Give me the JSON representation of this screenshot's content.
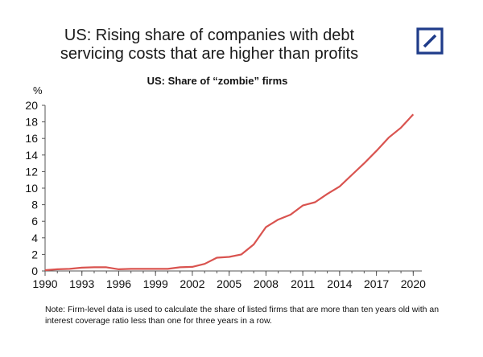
{
  "title_line1": "US: Rising share of companies with debt",
  "title_line2": "servicing costs that are higher than profits",
  "logo_name": "deutsche-bank-logo",
  "colors": {
    "line": "#d9534f",
    "logo": "#1f3c8a",
    "axis": "#555555"
  },
  "note": "Note: Firm-level data is used to calculate the share of listed firms that are more than ten years old with an interest coverage ratio less than one for three years in a row.",
  "chart_data": {
    "type": "line",
    "title": "US: Share of “zombie” firms",
    "ylabel": "%",
    "xlabel": "",
    "xlim": [
      1990,
      2020.7
    ],
    "ylim": [
      0,
      20
    ],
    "x_ticks": [
      "1990",
      "1993",
      "1996",
      "1999",
      "2002",
      "2005",
      "2008",
      "2011",
      "2014",
      "2017",
      "2020"
    ],
    "y_ticks": [
      "0",
      "2",
      "4",
      "6",
      "8",
      "10",
      "12",
      "14",
      "16",
      "18",
      "20"
    ],
    "grid": false,
    "series": [
      {
        "x": [
          1990,
          1991,
          1992,
          1993,
          1994,
          1995,
          1996,
          1997,
          1998,
          1999,
          2000,
          2001,
          2002,
          2003,
          2004,
          2005,
          2006,
          2007,
          2008,
          2009,
          2010,
          2011,
          2012,
          2013,
          2014,
          2015,
          2016,
          2017,
          2018,
          2019,
          2020
        ],
        "values": [
          0.1,
          0.2,
          0.25,
          0.4,
          0.45,
          0.45,
          0.2,
          0.25,
          0.25,
          0.25,
          0.25,
          0.45,
          0.5,
          0.85,
          1.6,
          1.7,
          2.0,
          3.2,
          5.3,
          6.2,
          6.8,
          7.9,
          8.3,
          9.3,
          10.2,
          11.6,
          13.0,
          14.5,
          16.1,
          17.3,
          18.9
        ]
      }
    ]
  }
}
